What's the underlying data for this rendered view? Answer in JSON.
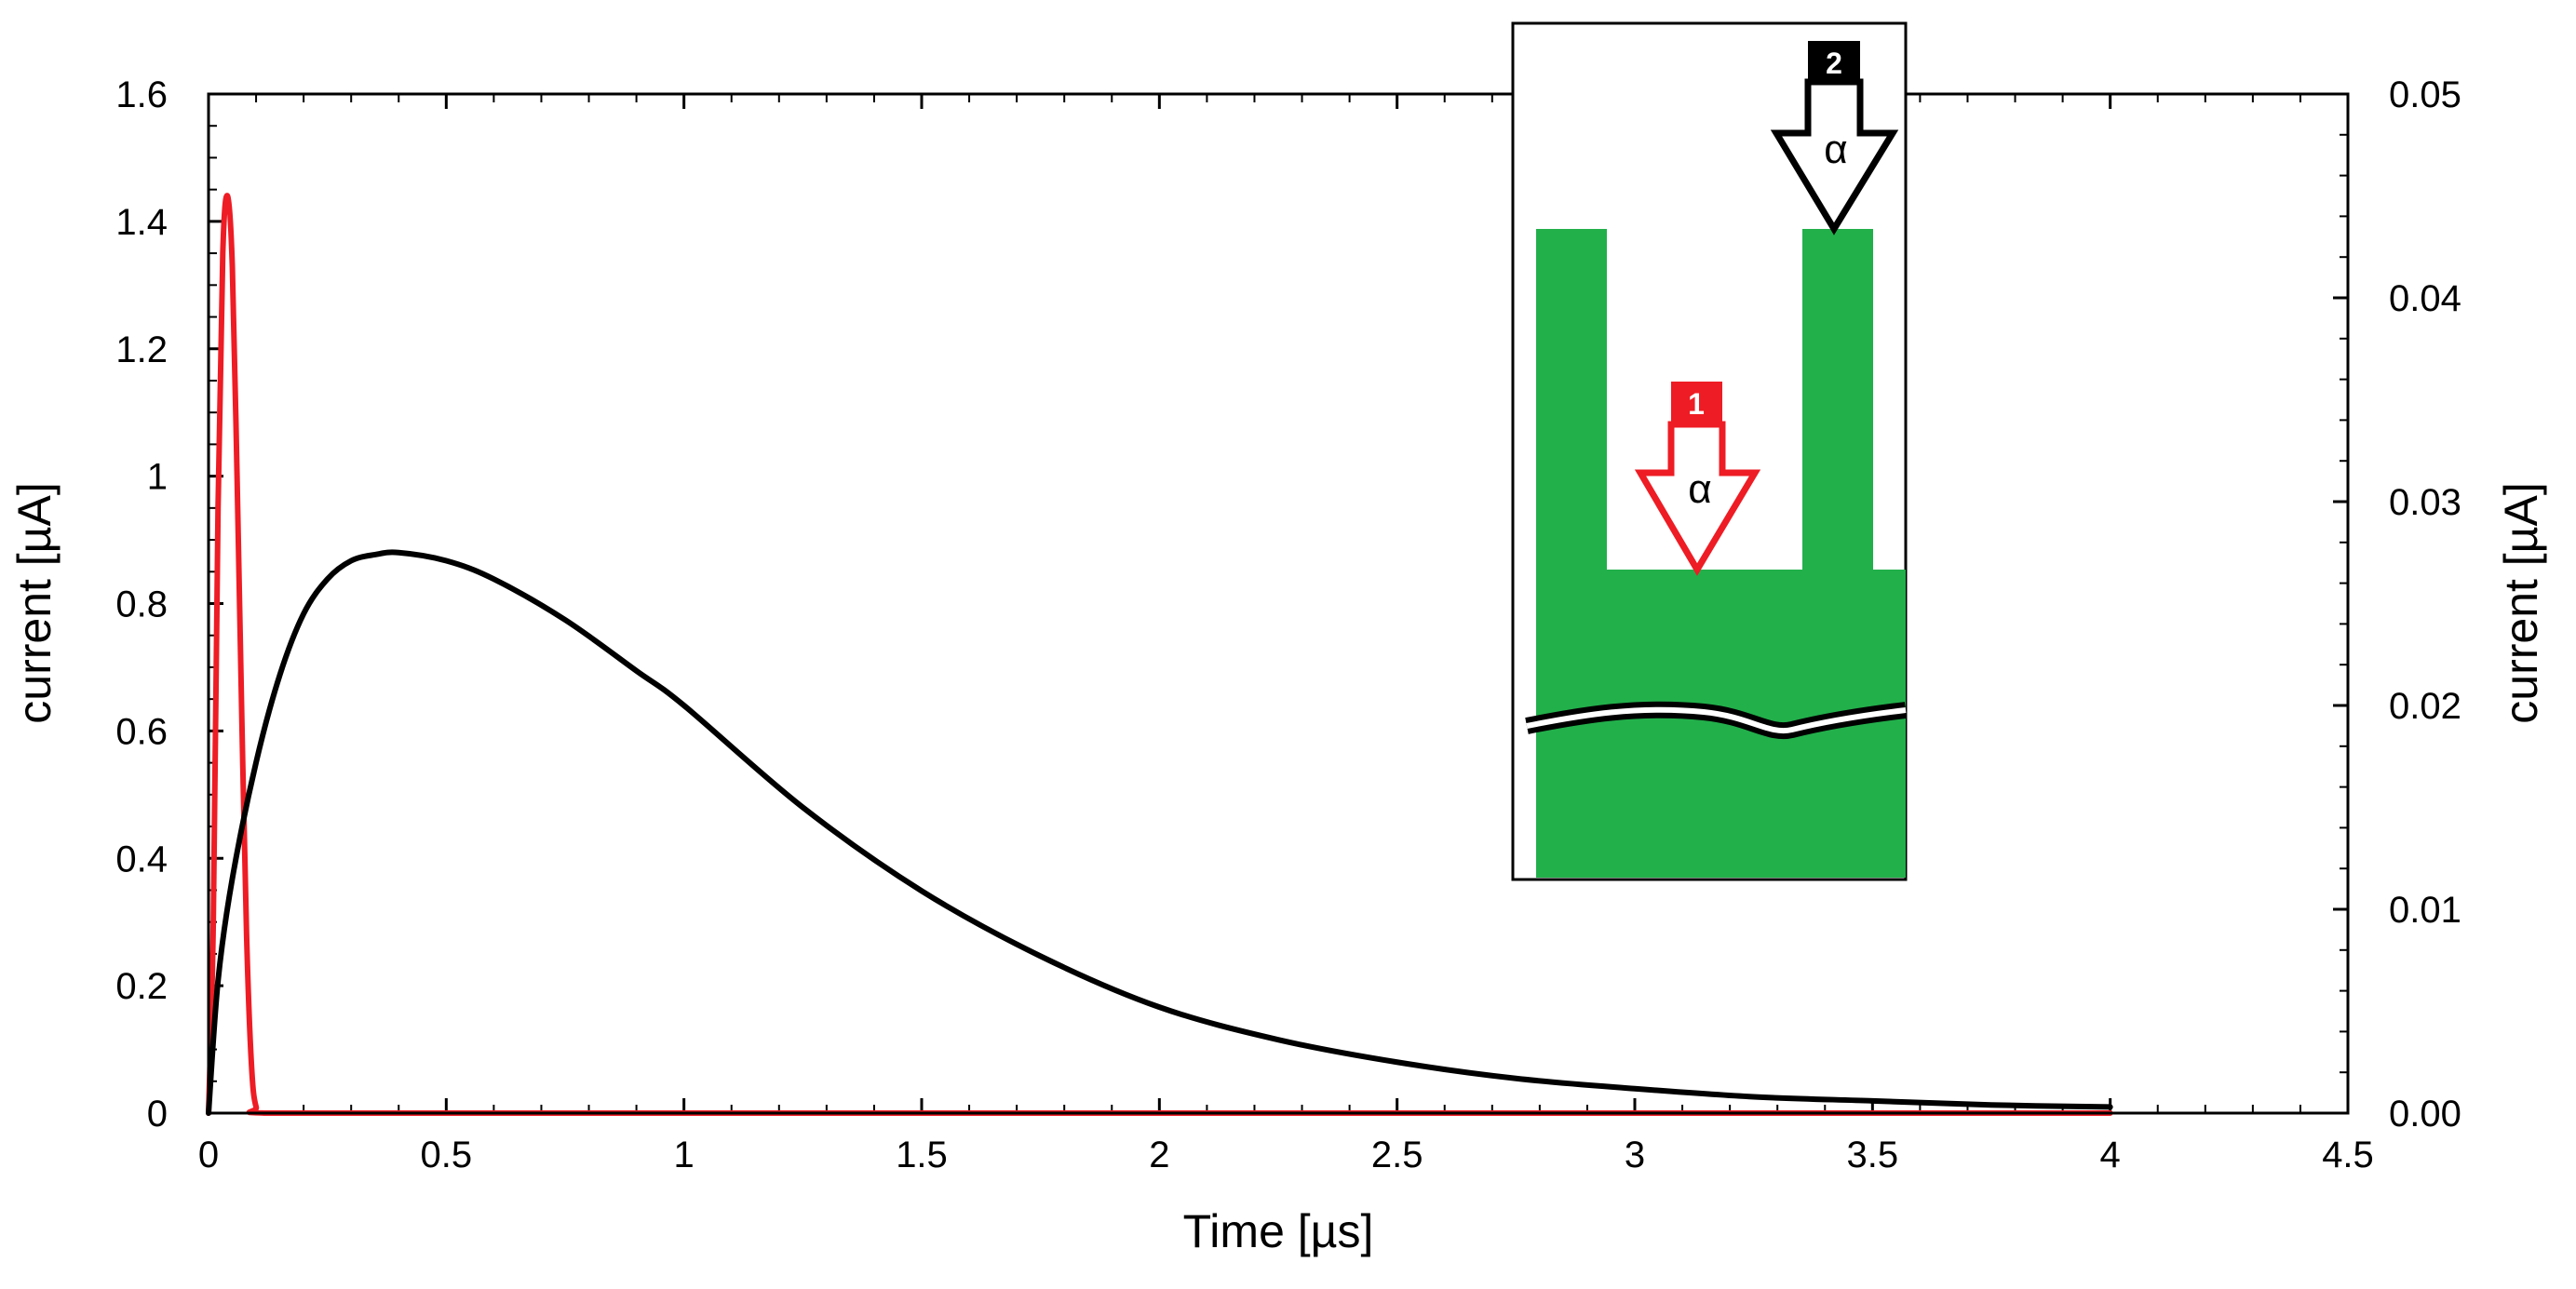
{
  "chart_data": {
    "type": "line",
    "xlabel": "Time [µs]",
    "ylabel_left": "current [µA]",
    "ylabel_right": "current [µA]",
    "xlim": [
      0,
      4.5
    ],
    "ylim_left": [
      0,
      1.6
    ],
    "ylim_right": [
      0,
      0.05
    ],
    "x_ticks": [
      "0",
      "0.5",
      "1",
      "1.5",
      "2",
      "2.5",
      "3",
      "3.5",
      "4",
      "4.5"
    ],
    "y_left_ticks": [
      "0",
      "0.2",
      "0.4",
      "0.6",
      "0.8",
      "1",
      "1.2",
      "1.4",
      "1.6"
    ],
    "y_right_ticks": [
      "0.00",
      "0.01",
      "0.02",
      "0.03",
      "0.04",
      "0.05"
    ],
    "grid": false,
    "series": [
      {
        "axis": "left",
        "color": "#ee1c24",
        "x": [
          0,
          0.01,
          0.02,
          0.03,
          0.04,
          0.05,
          0.06,
          0.07,
          0.08,
          0.09,
          0.1,
          0.12,
          0.5,
          1,
          2,
          3,
          4
        ],
        "y": [
          0,
          0.3,
          0.95,
          1.35,
          1.44,
          1.33,
          1.0,
          0.62,
          0.28,
          0.08,
          0.01,
          0,
          0,
          0,
          0,
          0,
          0
        ]
      },
      {
        "axis": "right",
        "color": "#000000",
        "x": [
          0,
          0.02,
          0.05,
          0.1,
          0.15,
          0.2,
          0.25,
          0.3,
          0.35,
          0.4,
          0.5,
          0.6,
          0.75,
          0.9,
          1.0,
          1.25,
          1.5,
          1.75,
          2.0,
          2.25,
          2.5,
          2.75,
          3.0,
          3.25,
          3.5,
          3.75,
          4.0
        ],
        "y": [
          0,
          0.0065,
          0.0115,
          0.0172,
          0.0215,
          0.0245,
          0.0262,
          0.0271,
          0.0274,
          0.0275,
          0.0271,
          0.0262,
          0.0242,
          0.0217,
          0.02,
          0.015,
          0.0109,
          0.0077,
          0.0052,
          0.0036,
          0.0025,
          0.0017,
          0.0012,
          0.0008,
          0.0006,
          0.0004,
          0.0003
        ]
      }
    ]
  },
  "inset": {
    "badge_1": "1",
    "badge_2": "2",
    "arrow_1_label": "α",
    "arrow_2_label": "α",
    "colors": {
      "green": "#22b04b",
      "red": "#ee1c24",
      "black": "#000000"
    }
  }
}
